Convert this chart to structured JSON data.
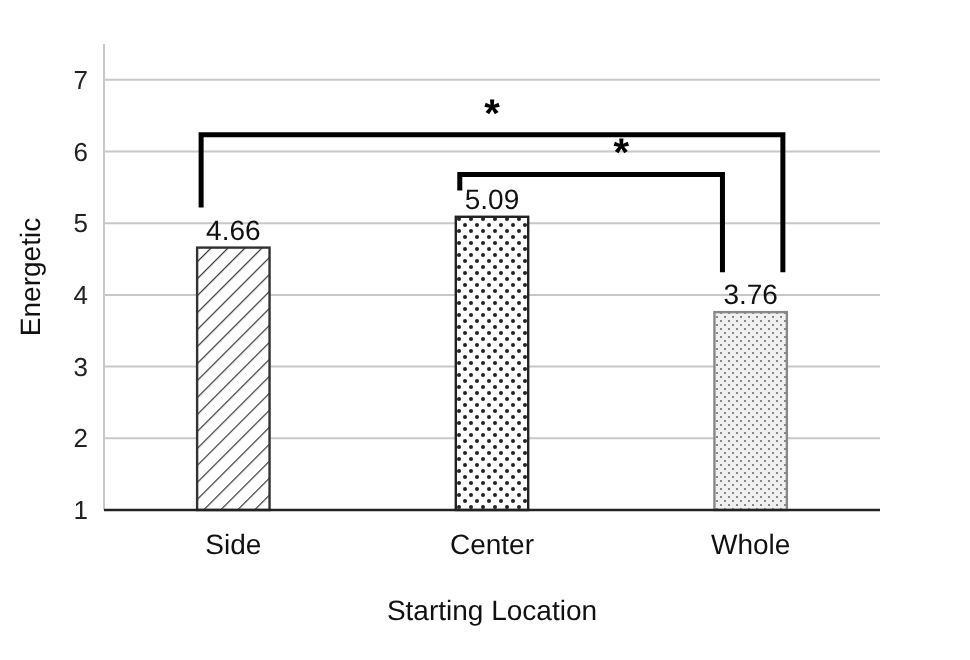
{
  "chart_data": {
    "type": "bar",
    "xlabel": "Starting Location",
    "ylabel": "Energetic",
    "categories": [
      "Side",
      "Center",
      "Whole"
    ],
    "values": [
      4.66,
      5.09,
      3.76
    ],
    "colors": [
      "#333333",
      "#222222",
      "#888888"
    ],
    "data_labels": true,
    "ylim": [
      1,
      7.5
    ],
    "yticks": [
      1,
      2,
      3,
      4,
      5,
      6,
      7
    ],
    "grid": "y",
    "annotations": [
      "*",
      "*"
    ]
  }
}
